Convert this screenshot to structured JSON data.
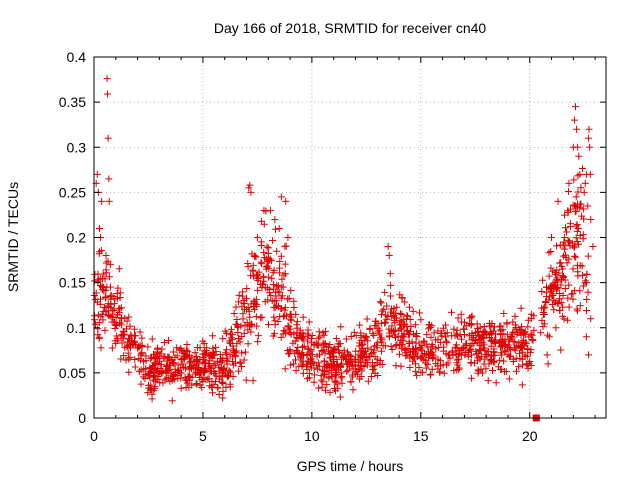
{
  "chart_data": {
    "type": "scatter",
    "title": "Day 166 of 2018, SRMTID for receiver cn40",
    "xlabel": "GPS time / hours",
    "ylabel": "SRMTID / TECUs",
    "xlim": [
      0,
      23.5
    ],
    "ylim": [
      0,
      0.4
    ],
    "x_ticks": [
      {
        "value": 0,
        "label": "0"
      },
      {
        "value": 5,
        "label": "5"
      },
      {
        "value": 10,
        "label": "10"
      },
      {
        "value": 15,
        "label": "15"
      },
      {
        "value": 20,
        "label": "20"
      }
    ],
    "y_ticks": [
      {
        "value": 0,
        "label": "0"
      },
      {
        "value": 0.05,
        "label": "0.05"
      },
      {
        "value": 0.1,
        "label": "0.1"
      },
      {
        "value": 0.15,
        "label": "0.15"
      },
      {
        "value": 0.2,
        "label": "0.2"
      },
      {
        "value": 0.25,
        "label": "0.25"
      },
      {
        "value": 0.3,
        "label": "0.3"
      },
      {
        "value": 0.35,
        "label": "0.35"
      },
      {
        "value": 0.4,
        "label": "0.4"
      }
    ],
    "grid": true,
    "marker_color": "#dd0000",
    "series": [
      {
        "name": "SRMTID",
        "marker": "plus",
        "trend": [
          [
            0.0,
            0.14,
            0.05
          ],
          [
            0.3,
            0.13,
            0.05
          ],
          [
            0.6,
            0.13,
            0.04
          ],
          [
            1.0,
            0.11,
            0.04
          ],
          [
            1.5,
            0.09,
            0.03
          ],
          [
            2.0,
            0.075,
            0.03
          ],
          [
            2.5,
            0.05,
            0.025
          ],
          [
            3.0,
            0.06,
            0.025
          ],
          [
            4.0,
            0.055,
            0.025
          ],
          [
            5.0,
            0.06,
            0.025
          ],
          [
            6.0,
            0.055,
            0.025
          ],
          [
            6.8,
            0.1,
            0.05
          ],
          [
            7.5,
            0.15,
            0.06
          ],
          [
            8.0,
            0.16,
            0.05
          ],
          [
            8.7,
            0.14,
            0.06
          ],
          [
            9.2,
            0.09,
            0.04
          ],
          [
            10.0,
            0.07,
            0.03
          ],
          [
            11.0,
            0.06,
            0.03
          ],
          [
            12.0,
            0.065,
            0.03
          ],
          [
            13.0,
            0.085,
            0.035
          ],
          [
            13.5,
            0.11,
            0.04
          ],
          [
            14.0,
            0.095,
            0.035
          ],
          [
            15.0,
            0.075,
            0.03
          ],
          [
            16.0,
            0.08,
            0.03
          ],
          [
            17.0,
            0.085,
            0.03
          ],
          [
            18.0,
            0.08,
            0.03
          ],
          [
            19.0,
            0.08,
            0.03
          ],
          [
            20.0,
            0.08,
            0.03
          ],
          [
            20.5,
            0.11,
            0.04
          ],
          [
            21.0,
            0.14,
            0.06
          ],
          [
            21.5,
            0.16,
            0.07
          ],
          [
            22.0,
            0.2,
            0.08
          ],
          [
            22.6,
            0.18,
            0.07
          ]
        ],
        "outliers": [
          [
            0.1,
            0.26
          ],
          [
            0.15,
            0.27
          ],
          [
            0.2,
            0.25
          ],
          [
            0.25,
            0.21
          ],
          [
            0.3,
            0.2
          ],
          [
            0.35,
            0.24
          ],
          [
            0.6,
            0.376
          ],
          [
            0.62,
            0.359
          ],
          [
            0.65,
            0.31
          ],
          [
            0.68,
            0.265
          ],
          [
            0.7,
            0.24
          ],
          [
            0.55,
            0.18
          ],
          [
            0.75,
            0.17
          ],
          [
            7.1,
            0.255
          ],
          [
            7.15,
            0.258
          ],
          [
            7.2,
            0.25
          ],
          [
            7.5,
            0.2
          ],
          [
            7.8,
            0.23
          ],
          [
            8.1,
            0.23
          ],
          [
            8.3,
            0.22
          ],
          [
            8.6,
            0.245
          ],
          [
            8.8,
            0.24
          ],
          [
            8.9,
            0.2
          ],
          [
            8.5,
            0.21
          ],
          [
            13.5,
            0.19
          ],
          [
            13.55,
            0.18
          ],
          [
            13.6,
            0.16
          ],
          [
            21.0,
            0.2
          ],
          [
            21.3,
            0.24
          ],
          [
            21.6,
            0.2
          ],
          [
            21.8,
            0.26
          ],
          [
            22.0,
            0.3
          ],
          [
            22.05,
            0.33
          ],
          [
            22.1,
            0.345
          ],
          [
            22.15,
            0.32
          ],
          [
            22.2,
            0.3
          ],
          [
            22.25,
            0.29
          ],
          [
            22.3,
            0.27
          ],
          [
            22.5,
            0.25
          ],
          [
            22.55,
            0.26
          ],
          [
            22.6,
            0.27
          ],
          [
            22.7,
            0.31
          ],
          [
            22.72,
            0.32
          ],
          [
            22.75,
            0.3
          ],
          [
            22.78,
            0.27
          ],
          [
            22.8,
            0.22
          ],
          [
            22.9,
            0.19
          ],
          [
            22.6,
            0.09
          ],
          [
            22.7,
            0.07
          ],
          [
            22.8,
            0.11
          ],
          [
            20.8,
            0.07
          ],
          [
            20.9,
            0.09
          ],
          [
            21.1,
            0.12
          ],
          [
            21.2,
            0.1
          ]
        ]
      },
      {
        "name": "marker",
        "marker": "square",
        "points": [
          [
            20.3,
            0.0
          ]
        ]
      }
    ]
  }
}
